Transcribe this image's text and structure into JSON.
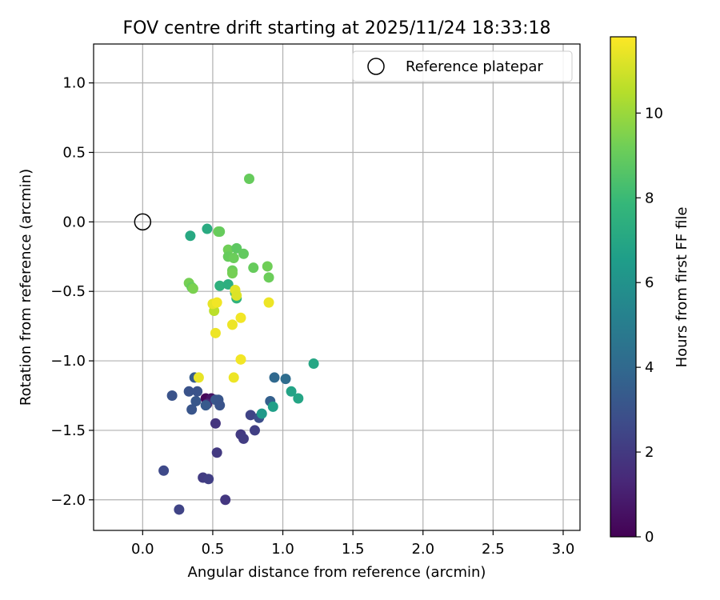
{
  "chart_data": {
    "type": "scatter",
    "title": "FOV centre drift starting at 2025/11/24 18:33:18",
    "xlabel": "Angular distance from reference (arcmin)",
    "ylabel": "Rotation from reference (arcmin)",
    "xlim": [
      -0.35,
      3.12
    ],
    "ylim": [
      -2.22,
      1.28
    ],
    "xticks": [
      0.0,
      0.5,
      1.0,
      1.5,
      2.0,
      2.5,
      3.0
    ],
    "xtick_labels": [
      "0.0",
      "0.5",
      "1.0",
      "1.5",
      "2.0",
      "2.5",
      "3.0"
    ],
    "yticks": [
      1.0,
      0.5,
      0.0,
      -0.5,
      -1.0,
      -1.5,
      -2.0
    ],
    "ytick_labels": [
      "1.0",
      "0.5",
      "0.0",
      "−0.5",
      "−1.0",
      "−1.5",
      "−2.0"
    ],
    "grid": true,
    "legend": {
      "position": "top-right",
      "entries": [
        "Reference platepar"
      ]
    },
    "reference_point": {
      "label": "Reference platepar",
      "x": 0.0,
      "y": 0.0
    },
    "colorbar": {
      "label": "Hours from first FF file",
      "range": [
        0,
        11.8
      ],
      "ticks": [
        0,
        2,
        4,
        6,
        8,
        10
      ],
      "tick_labels": [
        "0",
        "2",
        "4",
        "6",
        "8",
        "10"
      ],
      "colormap": [
        "#440154",
        "#482878",
        "#3e4a89",
        "#31688e",
        "#26828e",
        "#1f9e89",
        "#35b779",
        "#6ece58",
        "#b5de2b",
        "#fde725"
      ]
    },
    "series": [
      {
        "name": "FOV centre positions",
        "points": [
          {
            "x": 0.45,
            "y": -1.27,
            "h": 0.2
          },
          {
            "x": 0.49,
            "y": -1.27,
            "h": 0.6
          },
          {
            "x": 0.46,
            "y": -1.31,
            "h": 1.3
          },
          {
            "x": 0.52,
            "y": -1.45,
            "h": 1.8
          },
          {
            "x": 0.53,
            "y": -1.66,
            "h": 2.0
          },
          {
            "x": 0.43,
            "y": -1.84,
            "h": 2.1
          },
          {
            "x": 0.47,
            "y": -1.85,
            "h": 2.2
          },
          {
            "x": 0.59,
            "y": -2.0,
            "h": 1.9
          },
          {
            "x": 0.26,
            "y": -2.07,
            "h": 2.4
          },
          {
            "x": 0.15,
            "y": -1.79,
            "h": 2.6
          },
          {
            "x": 0.7,
            "y": -1.53,
            "h": 2.0
          },
          {
            "x": 0.72,
            "y": -1.56,
            "h": 2.1
          },
          {
            "x": 0.8,
            "y": -1.5,
            "h": 2.2
          },
          {
            "x": 0.77,
            "y": -1.39,
            "h": 2.4
          },
          {
            "x": 0.83,
            "y": -1.41,
            "h": 2.8
          },
          {
            "x": 0.21,
            "y": -1.25,
            "h": 3.0
          },
          {
            "x": 0.33,
            "y": -1.22,
            "h": 3.0
          },
          {
            "x": 0.35,
            "y": -1.35,
            "h": 3.1
          },
          {
            "x": 0.38,
            "y": -1.29,
            "h": 3.2
          },
          {
            "x": 0.39,
            "y": -1.22,
            "h": 3.0
          },
          {
            "x": 0.37,
            "y": -1.12,
            "h": 3.4
          },
          {
            "x": 0.45,
            "y": -1.32,
            "h": 3.3
          },
          {
            "x": 0.52,
            "y": -1.28,
            "h": 3.2
          },
          {
            "x": 0.54,
            "y": -1.28,
            "h": 3.1
          },
          {
            "x": 0.55,
            "y": -1.32,
            "h": 3.0
          },
          {
            "x": 0.91,
            "y": -1.29,
            "h": 3.6
          },
          {
            "x": 0.94,
            "y": -1.12,
            "h": 4.0
          },
          {
            "x": 1.02,
            "y": -1.13,
            "h": 4.2
          },
          {
            "x": 0.85,
            "y": -1.38,
            "h": 6.3
          },
          {
            "x": 0.93,
            "y": -1.33,
            "h": 6.6
          },
          {
            "x": 1.06,
            "y": -1.22,
            "h": 6.8
          },
          {
            "x": 1.11,
            "y": -1.27,
            "h": 6.9
          },
          {
            "x": 1.22,
            "y": -1.02,
            "h": 7.0
          },
          {
            "x": 0.67,
            "y": -0.55,
            "h": 7.6
          },
          {
            "x": 0.34,
            "y": -0.1,
            "h": 7.1
          },
          {
            "x": 0.46,
            "y": -0.05,
            "h": 7.2
          },
          {
            "x": 0.55,
            "y": -0.46,
            "h": 7.5
          },
          {
            "x": 0.61,
            "y": -0.45,
            "h": 7.4
          },
          {
            "x": 0.66,
            "y": -0.51,
            "h": 7.9
          },
          {
            "x": 0.76,
            "y": 0.31,
            "h": 9.0
          },
          {
            "x": 0.54,
            "y": -0.07,
            "h": 9.2
          },
          {
            "x": 0.55,
            "y": -0.07,
            "h": 9.0
          },
          {
            "x": 0.61,
            "y": -0.2,
            "h": 9.2
          },
          {
            "x": 0.61,
            "y": -0.25,
            "h": 9.0
          },
          {
            "x": 0.65,
            "y": -0.26,
            "h": 9.1
          },
          {
            "x": 0.67,
            "y": -0.19,
            "h": 8.8
          },
          {
            "x": 0.72,
            "y": -0.23,
            "h": 8.9
          },
          {
            "x": 0.64,
            "y": -0.35,
            "h": 9.1
          },
          {
            "x": 0.64,
            "y": -0.37,
            "h": 9.3
          },
          {
            "x": 0.79,
            "y": -0.33,
            "h": 9.0
          },
          {
            "x": 0.89,
            "y": -0.32,
            "h": 9.2
          },
          {
            "x": 0.9,
            "y": -0.4,
            "h": 9.1
          },
          {
            "x": 0.33,
            "y": -0.44,
            "h": 9.3
          },
          {
            "x": 0.35,
            "y": -0.47,
            "h": 9.0
          },
          {
            "x": 0.36,
            "y": -0.48,
            "h": 9.4
          },
          {
            "x": 0.51,
            "y": -0.64,
            "h": 10.6
          },
          {
            "x": 0.5,
            "y": -0.59,
            "h": 11.4
          },
          {
            "x": 0.53,
            "y": -0.58,
            "h": 11.6
          },
          {
            "x": 0.66,
            "y": -0.49,
            "h": 11.3
          },
          {
            "x": 0.67,
            "y": -0.53,
            "h": 11.2
          },
          {
            "x": 0.64,
            "y": -0.74,
            "h": 11.5
          },
          {
            "x": 0.7,
            "y": -0.69,
            "h": 11.6
          },
          {
            "x": 0.52,
            "y": -0.8,
            "h": 11.5
          },
          {
            "x": 0.9,
            "y": -0.58,
            "h": 11.5
          },
          {
            "x": 0.7,
            "y": -0.99,
            "h": 11.6
          },
          {
            "x": 0.65,
            "y": -1.12,
            "h": 11.5
          },
          {
            "x": 0.4,
            "y": -1.12,
            "h": 11.4
          }
        ]
      }
    ]
  }
}
